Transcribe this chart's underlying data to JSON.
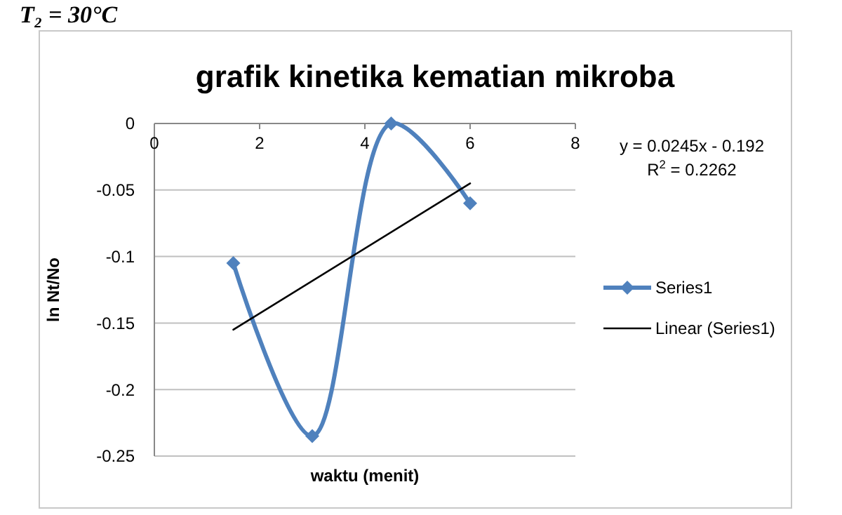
{
  "chart_data": {
    "type": "line",
    "title": "grafik kinetika kematian mikroba",
    "xlabel": "waktu (menit)",
    "ylabel": "ln Nt/No",
    "annotations": [
      "T₂ = 30°C",
      "y = 0.0245x - 0.192",
      "R$^{2}$ = 0.2262"
    ],
    "xlim": [
      0,
      8
    ],
    "xticks": [
      0,
      2,
      4,
      6,
      8
    ],
    "ylim": [
      -0.25,
      0
    ],
    "yticks": [
      -0.25,
      -0.2,
      -0.15,
      -0.1,
      -0.05,
      0
    ],
    "grid": "y",
    "legend": "right",
    "line_style": "solid",
    "series": [
      {
        "name": "Series1",
        "color": "#4f81bd",
        "marker": "diamond",
        "x": [
          1.5,
          3,
          4.5,
          6
        ],
        "values": [
          -0.105,
          -0.235,
          0,
          -0.06
        ]
      },
      {
        "name": "Linear (Series1)",
        "color": "#000000",
        "marker": "none",
        "x": [
          1.5,
          6
        ],
        "values": [
          -0.155,
          -0.045
        ]
      }
    ]
  }
}
